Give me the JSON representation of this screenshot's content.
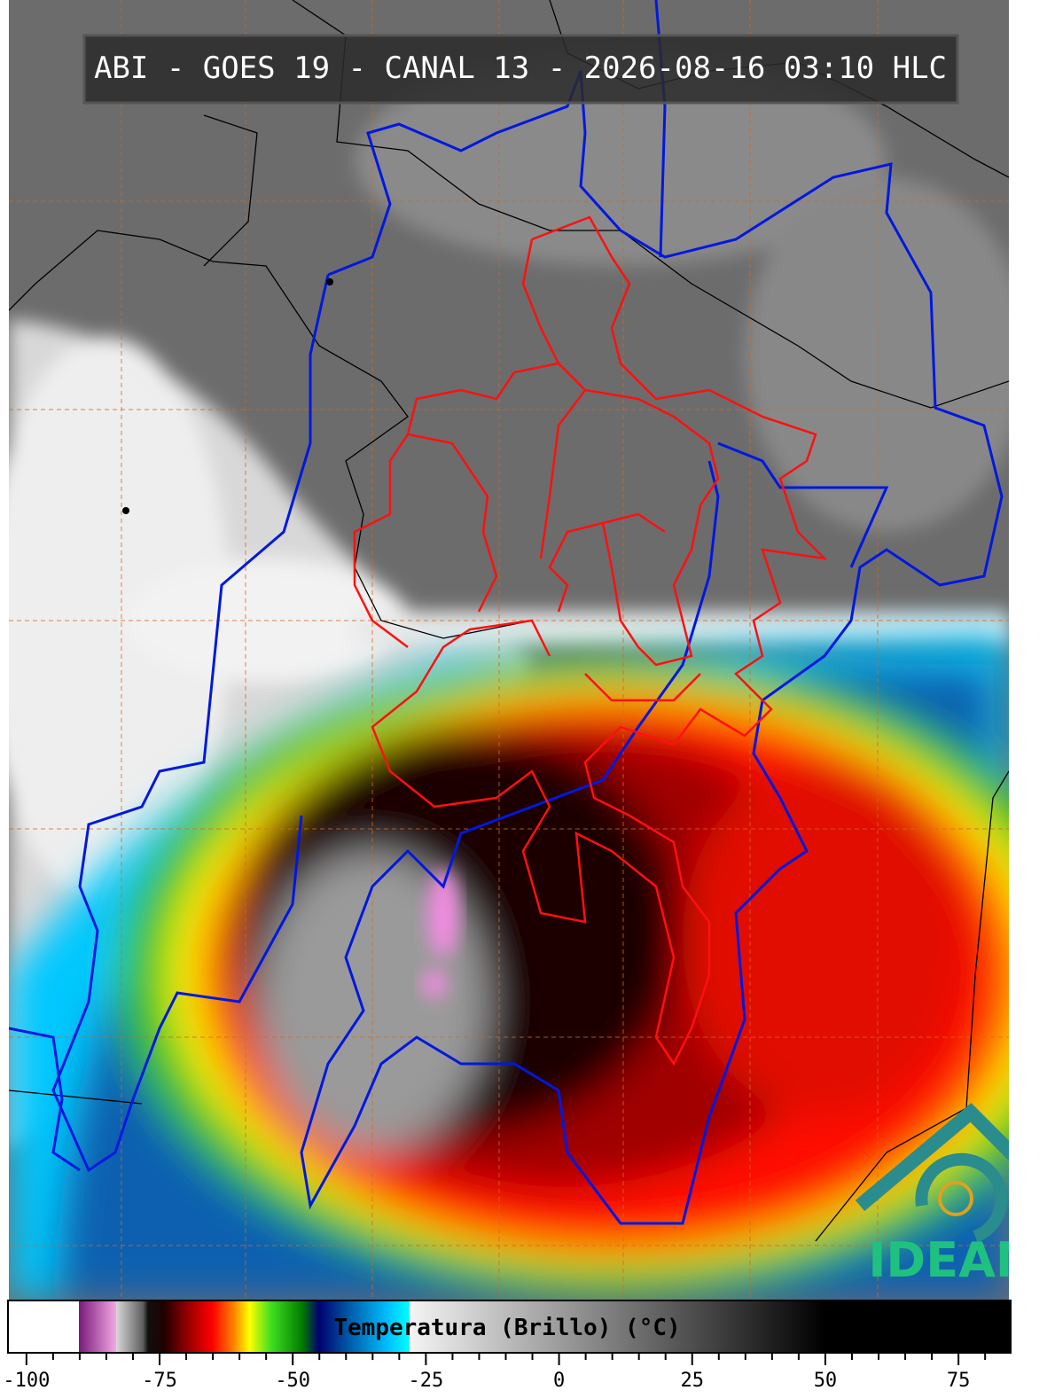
{
  "title": "ABI - GOES 19 - CANAL 13 - 2026-08-16 03:10 HLC",
  "logo_text": "IDEAM",
  "colorbar": {
    "label": "Temperatura (Brillo) (°C)",
    "xlim": [
      -103.3,
      84.8
    ],
    "xticks": [
      -100,
      -75,
      -50,
      -25,
      0,
      25,
      50,
      75
    ],
    "minor_xticks": [
      -95,
      -90,
      -85,
      -80,
      -70,
      -65,
      -60,
      -55,
      -45,
      -40,
      -35,
      -30,
      -20,
      -15,
      -10,
      -5,
      5,
      10,
      15,
      20,
      30,
      35,
      40,
      45,
      55,
      60,
      65,
      70,
      80
    ],
    "stops": [
      {
        "value": -103.3,
        "color": "#ffffff"
      },
      {
        "value": -90,
        "color": "#ffffff"
      },
      {
        "value": -90,
        "color": "#7a1a7a"
      },
      {
        "value": -83,
        "color": "#f2a8e6"
      },
      {
        "value": -83,
        "color": "#d8d8d8"
      },
      {
        "value": -78,
        "color": "#606060"
      },
      {
        "value": -77,
        "color": "#101010"
      },
      {
        "value": -74,
        "color": "#200000"
      },
      {
        "value": -70,
        "color": "#8b0000"
      },
      {
        "value": -65,
        "color": "#ff0000"
      },
      {
        "value": -61,
        "color": "#ff8000"
      },
      {
        "value": -58,
        "color": "#ffff00"
      },
      {
        "value": -54,
        "color": "#40e020"
      },
      {
        "value": -48,
        "color": "#007a00"
      },
      {
        "value": -45,
        "color": "#000070"
      },
      {
        "value": -40,
        "color": "#0050a0"
      },
      {
        "value": -32,
        "color": "#00c0ff"
      },
      {
        "value": -28,
        "color": "#00ffff"
      },
      {
        "value": -28,
        "color": "#f4f4f4"
      },
      {
        "value": 50,
        "color": "#000000"
      },
      {
        "value": 84.8,
        "color": "#000000"
      }
    ]
  }
}
